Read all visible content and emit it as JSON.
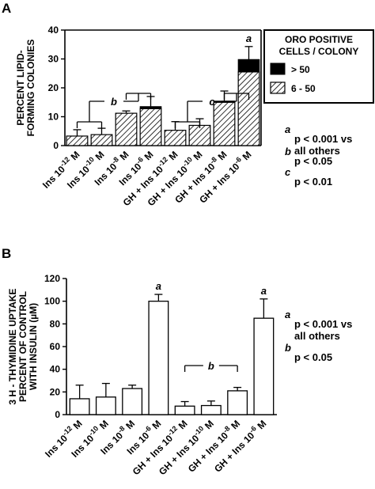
{
  "chart_data": [
    {
      "type": "bar",
      "panel": "A",
      "ylabel": [
        "PERCENT LIPID-",
        "FORMING COLONIES"
      ],
      "ylim": [
        0,
        40
      ],
      "yticks": [
        "0",
        "10",
        "20",
        "30",
        "40"
      ],
      "categories": [
        [
          "Ins 10",
          "-12",
          " M"
        ],
        [
          "Ins 10",
          "-10",
          " M"
        ],
        [
          "Ins 10",
          "-8",
          " M"
        ],
        [
          "Ins 10",
          "-6",
          " M"
        ],
        [
          "GH + Ins 10",
          "-12",
          " M"
        ],
        [
          "GH + Ins 10",
          "-10",
          " M"
        ],
        [
          "GH + Ins 10",
          "-8",
          " M"
        ],
        [
          "GH + Ins 10",
          "-6",
          " M"
        ]
      ],
      "series": [
        {
          "name": "6 - 50",
          "values": [
            3.3,
            3.8,
            11.2,
            12.8,
            5.3,
            7.0,
            15.0,
            25.5
          ]
        },
        {
          "name": "> 50",
          "values": [
            0,
            0,
            0,
            0.7,
            0,
            0,
            0.4,
            4.3
          ]
        }
      ],
      "errors": [
        2.2,
        2.2,
        0.8,
        3.5,
        3.0,
        2.3,
        3.5,
        4.5
      ],
      "bar_letters": [
        {
          "index": 7,
          "text": "a"
        }
      ],
      "brackets": [
        {
          "from": 0,
          "to": 3,
          "label": "b"
        },
        {
          "from": 4,
          "to": 7,
          "label": "c"
        }
      ],
      "legend": {
        "title": [
          "ORO POSITIVE",
          "CELLS / COLONY"
        ]
      },
      "notes": [
        {
          "letter": "a",
          "lines": [
            "p < 0.001 vs",
            "all others"
          ]
        },
        {
          "letter": "b",
          "lines": [
            "p < 0.05"
          ]
        },
        {
          "letter": "c",
          "lines": [
            "p < 0.01"
          ]
        }
      ]
    },
    {
      "type": "bar",
      "panel": "B",
      "ylabel": [
        "3 H - THYMIDINE UPTAKE",
        "PERCENT OF CONTROL",
        "WITH INSULIN (µM)"
      ],
      "ylim": [
        0,
        120
      ],
      "yticks": [
        "0",
        "20",
        "40",
        "60",
        "80",
        "100",
        "120"
      ],
      "categories": [
        [
          "Ins 10",
          "-12",
          " M"
        ],
        [
          "Ins 10",
          "-10",
          " M"
        ],
        [
          "Ins 10",
          "-8",
          " M"
        ],
        [
          "Ins 10",
          "-6",
          " M"
        ],
        [
          "GH + Ins 10",
          "-12",
          " M"
        ],
        [
          "GH + Ins 10",
          "-10",
          " M"
        ],
        [
          "GH + Ins 10",
          "-8",
          " M"
        ],
        [
          "GH + Ins 10",
          "-6",
          " M"
        ]
      ],
      "values": [
        14,
        15.5,
        23,
        100,
        7.5,
        8,
        21,
        85
      ],
      "errors": [
        12,
        12,
        3,
        6,
        4,
        4,
        3,
        17
      ],
      "bar_letters": [
        {
          "index": 3,
          "text": "a"
        },
        {
          "index": 7,
          "text": "a"
        }
      ],
      "brackets": [
        {
          "from": 4,
          "to": 6,
          "label": "b"
        }
      ],
      "notes": [
        {
          "letter": "a",
          "lines": [
            "p < 0.001 vs",
            "all others"
          ]
        },
        {
          "letter": "b",
          "lines": [
            "p < 0.05"
          ]
        }
      ]
    }
  ]
}
